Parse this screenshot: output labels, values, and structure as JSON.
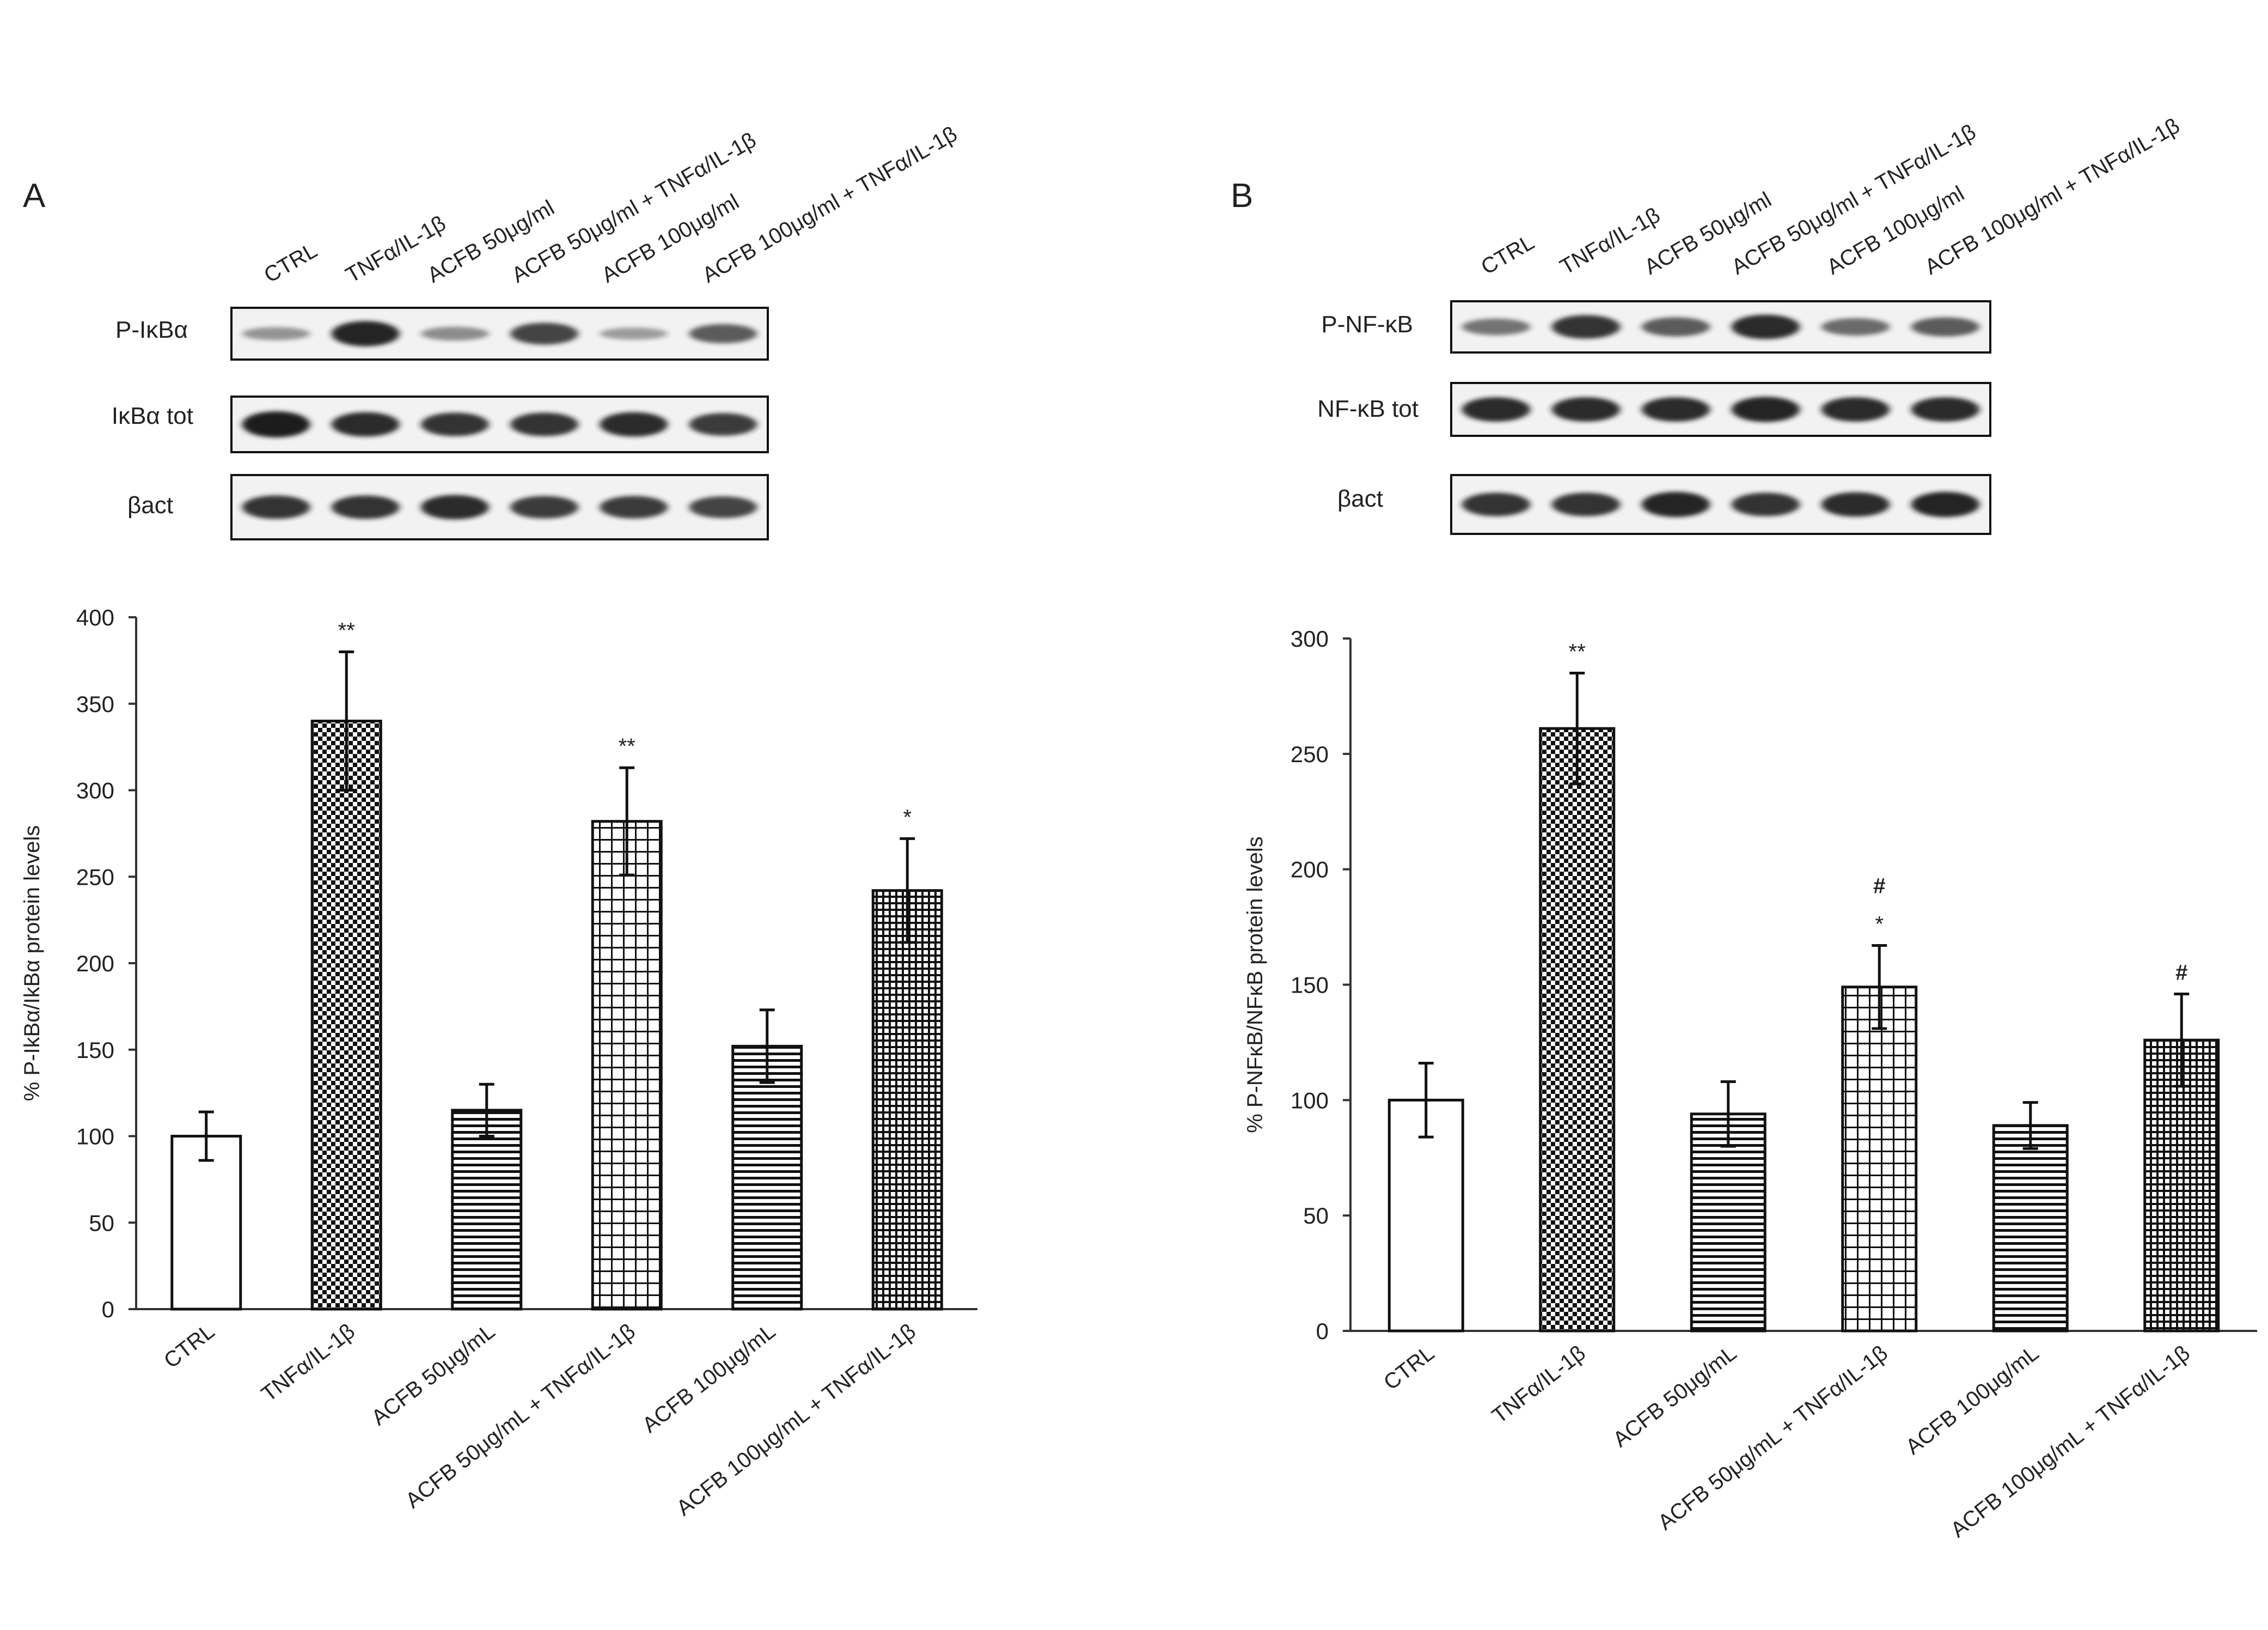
{
  "colors": {
    "ink": "#111111",
    "blot_bg": "#f2f2f2",
    "band": "#1a1a1a"
  },
  "panels": [
    {
      "id": "A",
      "letter": "A",
      "blot": {
        "lanes": [
          "CTRL",
          "TNFα/IL-1β",
          "ACFB 50μg/ml",
          "ACFB 50μg/ml + TNFα/IL-1β",
          "ACFB 100μg/ml",
          "ACFB 100μg/ml + TNFα/IL-1β"
        ],
        "rows": [
          {
            "label": "P-IκBα",
            "intensity": [
              0.25,
              0.95,
              0.3,
              0.75,
              0.2,
              0.6
            ]
          },
          {
            "label": "IκBα tot",
            "intensity": [
              1.0,
              0.9,
              0.85,
              0.85,
              0.9,
              0.8
            ]
          },
          {
            "label": "βact",
            "intensity": [
              0.85,
              0.85,
              0.9,
              0.8,
              0.8,
              0.75
            ]
          }
        ]
      }
    },
    {
      "id": "B",
      "letter": "B",
      "blot": {
        "lanes": [
          "CTRL",
          "TNFα/IL-1β",
          "ACFB 50μg/ml",
          "ACFB 50μg/ml + TNFα/IL-1β",
          "ACFB 100μg/ml",
          "ACFB 100μg/ml + TNFα/IL-1β"
        ],
        "rows": [
          {
            "label": "P-NF-κB",
            "intensity": [
              0.45,
              0.85,
              0.6,
              0.9,
              0.5,
              0.6
            ]
          },
          {
            "label": "NF-κB tot",
            "intensity": [
              0.9,
              0.9,
              0.9,
              0.95,
              0.9,
              0.9
            ]
          },
          {
            "label": "βact",
            "intensity": [
              0.85,
              0.85,
              0.95,
              0.85,
              0.9,
              0.95
            ]
          }
        ]
      }
    }
  ],
  "chart_data": [
    {
      "type": "bar",
      "panel": "A",
      "title": "",
      "xlabel": "",
      "ylabel": "% P-IkBα/IkBα protein levels",
      "ylim": [
        0,
        400
      ],
      "yticks": [
        0,
        50,
        100,
        150,
        200,
        250,
        300,
        350,
        400
      ],
      "categories": [
        "CTRL",
        "TNFα/IL-1β",
        "ACFB 50μg/mL",
        "ACFB 50μg/mL + TNFα/IL-1β",
        "ACFB 100μg/mL",
        "ACFB 100μg/mL + TNFα/IL-1β"
      ],
      "values": [
        100,
        340,
        115,
        282,
        152,
        242
      ],
      "errors": [
        14,
        40,
        15,
        31,
        21,
        30
      ],
      "patterns": [
        "none",
        "checker",
        "hlines",
        "grid",
        "hlines",
        "densegrid"
      ],
      "annotations": [
        {
          "index": 1,
          "lines": [
            "**"
          ]
        },
        {
          "index": 3,
          "lines": [
            "**"
          ]
        },
        {
          "index": 5,
          "lines": [
            "*"
          ]
        }
      ]
    },
    {
      "type": "bar",
      "panel": "B",
      "title": "",
      "xlabel": "",
      "ylabel": "% P-NFκB/NFκB protein levels",
      "ylim": [
        0,
        300
      ],
      "yticks": [
        0,
        50,
        100,
        150,
        200,
        250,
        300
      ],
      "categories": [
        "CTRL",
        "TNFα/IL-1β",
        "ACFB 50μg/mL",
        "ACFB 50μg/mL + TNFα/IL-1β",
        "ACFB 100μg/mL",
        "ACFB 100μg/mL + TNFα/IL-1β"
      ],
      "values": [
        100,
        261,
        94,
        149,
        89,
        126
      ],
      "errors": [
        16,
        24,
        14,
        18,
        10,
        20
      ],
      "patterns": [
        "none",
        "checker",
        "hlines",
        "grid",
        "hlines",
        "densegrid"
      ],
      "annotations": [
        {
          "index": 1,
          "lines": [
            "**"
          ]
        },
        {
          "index": 3,
          "lines": [
            "#",
            "*"
          ]
        },
        {
          "index": 5,
          "lines": [
            "#"
          ]
        }
      ]
    }
  ]
}
